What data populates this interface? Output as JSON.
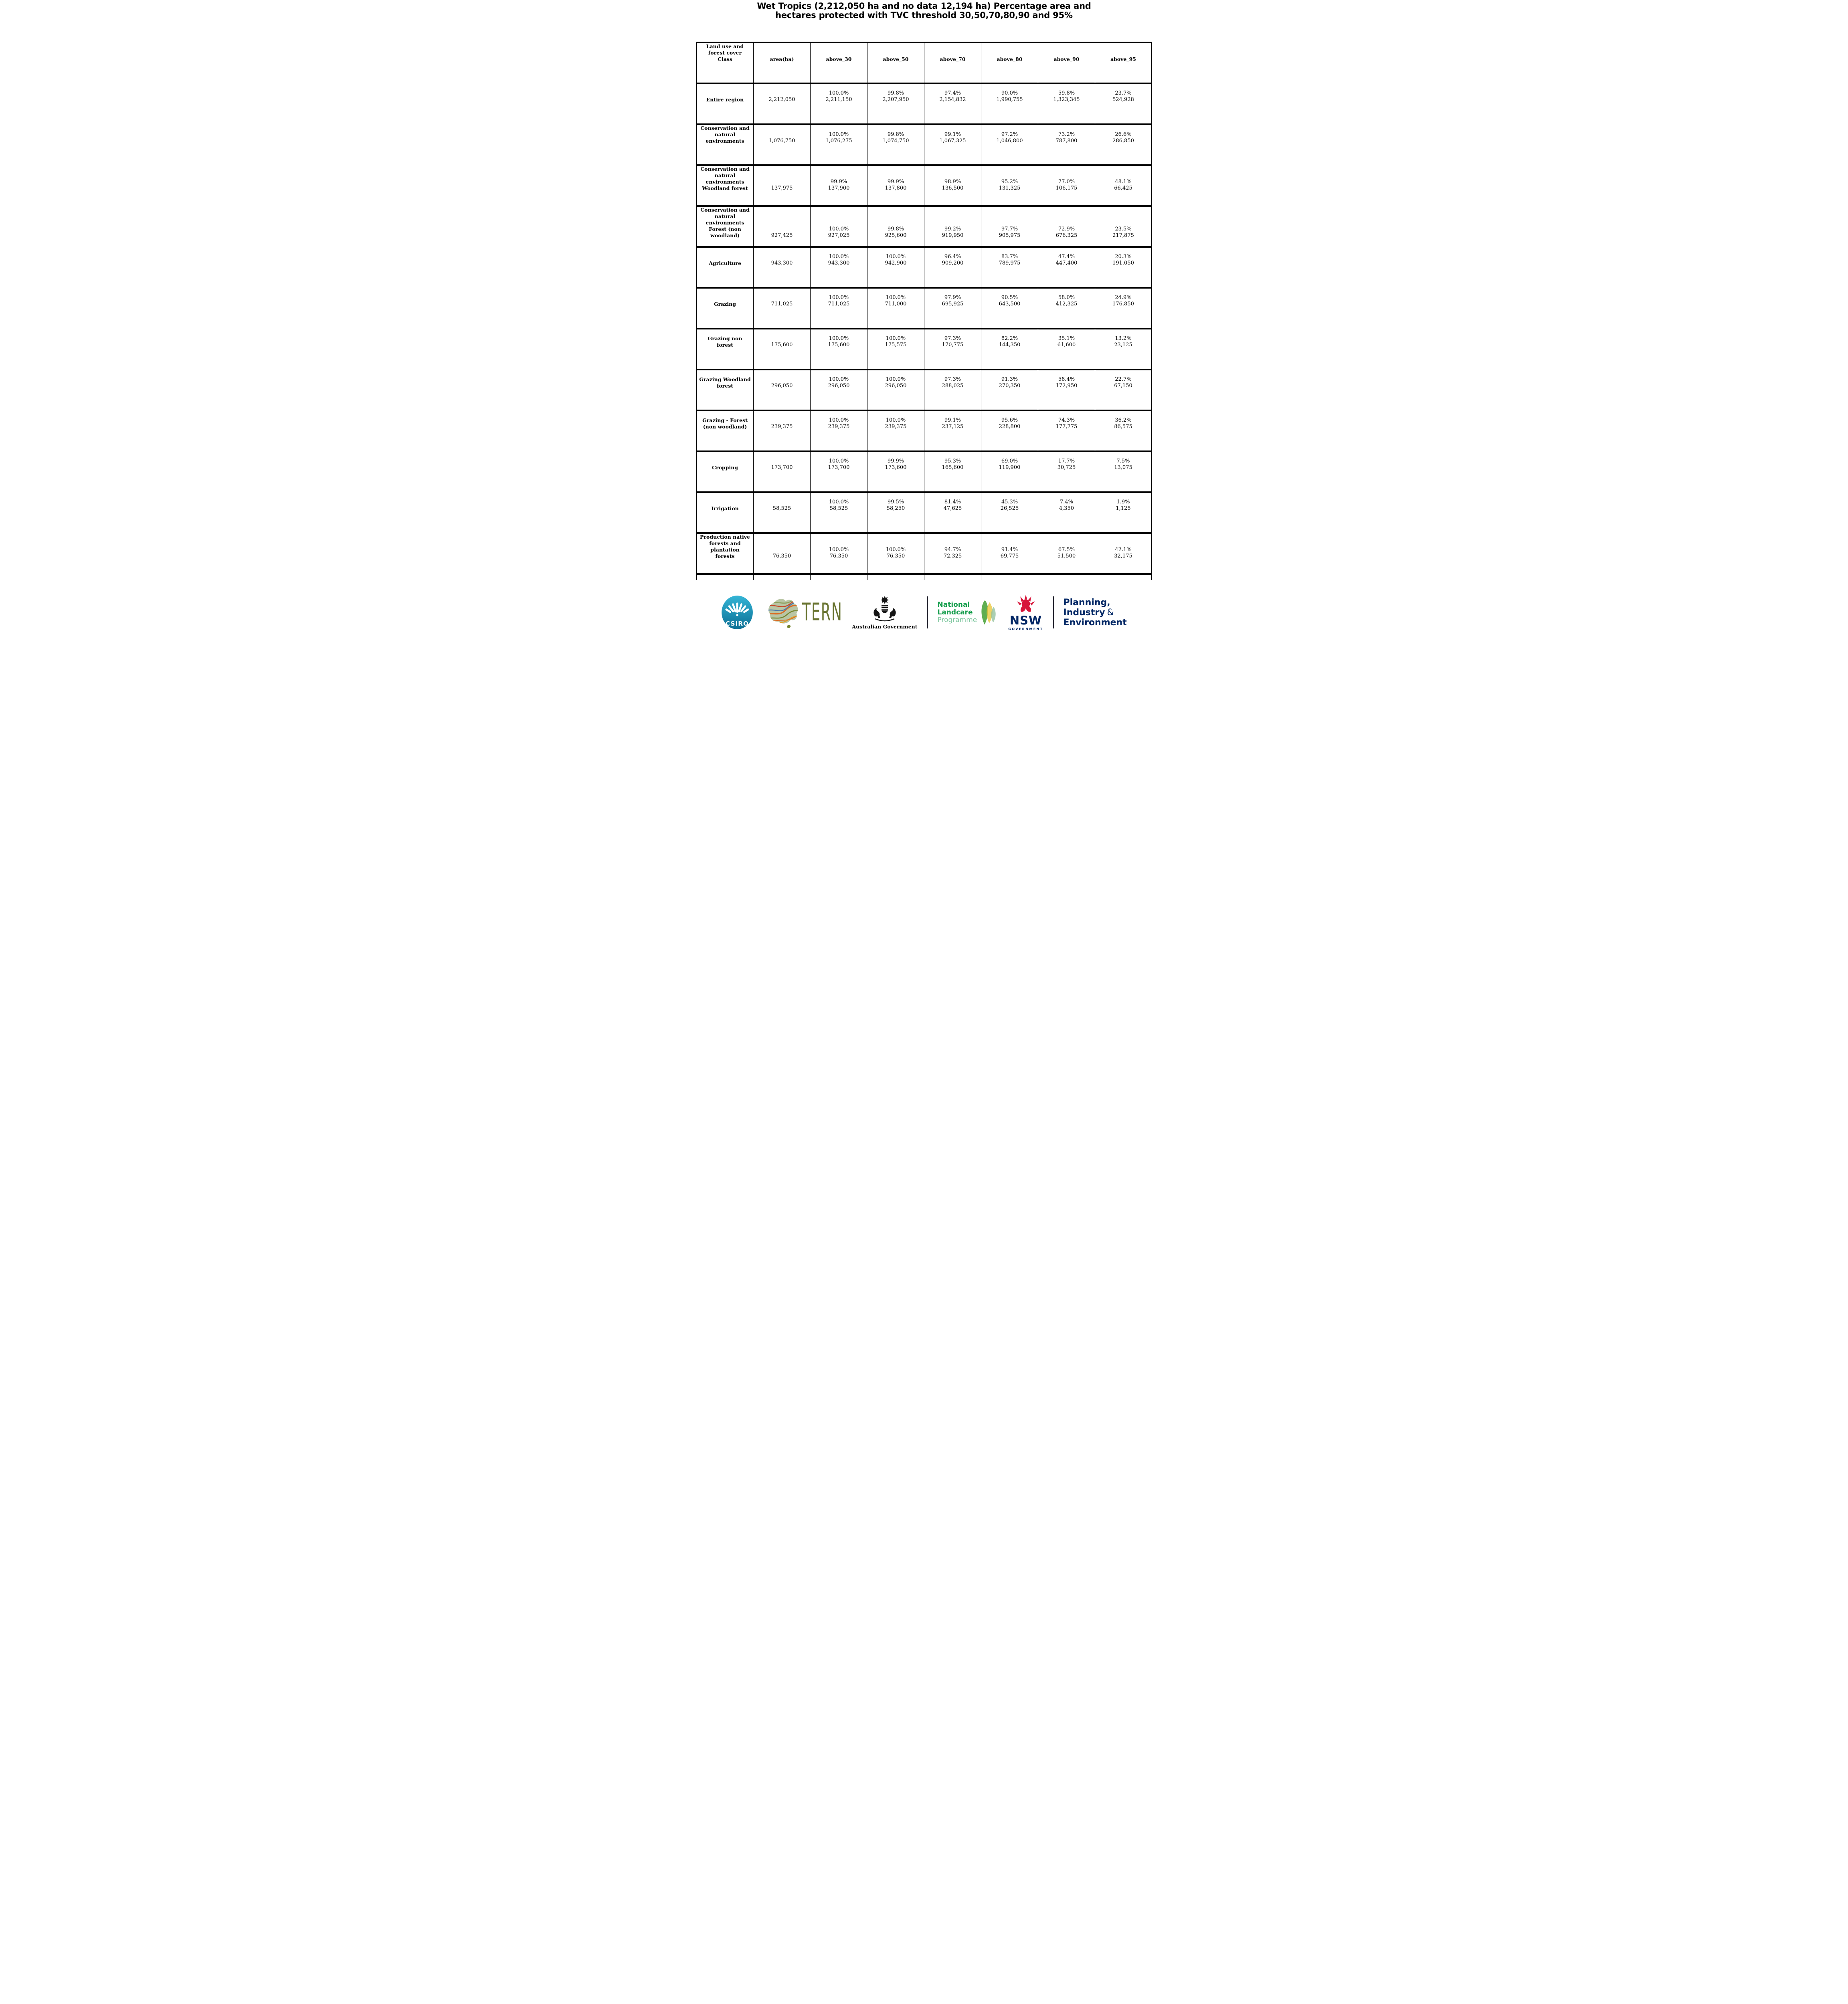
{
  "title": {
    "lines": [
      "Wet Tropics (2,212,050 ha and no data 12,194 ha) Percentage area and",
      "hectares protected with TVC threshold 30,50,70,80,90 and 95%"
    ]
  },
  "table": {
    "type": "table",
    "headers": [
      "Land use and\nforest cover\nClass",
      "area(ha)",
      "above_30",
      "above_50",
      "above_70",
      "above_80",
      "above_90",
      "above_95"
    ],
    "rows": [
      {
        "label": "Entire region",
        "area": "2,212,050",
        "cells": [
          [
            "100.0%",
            "2,211,150"
          ],
          [
            "99.8%",
            "2,207,950"
          ],
          [
            "97.4%",
            "2,154,832"
          ],
          [
            "90.0%",
            "1,990,755"
          ],
          [
            "59.8%",
            "1,323,345"
          ],
          [
            "23.7%",
            "524,928"
          ]
        ]
      },
      {
        "label": "Conservation and\nnatural\nenvironments",
        "area": "1,076,750",
        "cells": [
          [
            "100.0%",
            "1,076,275"
          ],
          [
            "99.8%",
            "1,074,750"
          ],
          [
            "99.1%",
            "1,067,325"
          ],
          [
            "97.2%",
            "1,046,800"
          ],
          [
            "73.2%",
            "787,800"
          ],
          [
            "26.6%",
            "286,850"
          ]
        ]
      },
      {
        "label": "Conservation and\nnatural\nenvironments\nWoodland forest",
        "area": "137,975",
        "cells": [
          [
            "99.9%",
            "137,900"
          ],
          [
            "99.9%",
            "137,800"
          ],
          [
            "98.9%",
            "136,500"
          ],
          [
            "95.2%",
            "131,325"
          ],
          [
            "77.0%",
            "106,175"
          ],
          [
            "48.1%",
            "66,425"
          ]
        ]
      },
      {
        "label": "Conservation and\nnatural\nenvironments\nForest (non\nwoodland)",
        "area": "927,425",
        "cells": [
          [
            "100.0%",
            "927,025"
          ],
          [
            "99.8%",
            "925,600"
          ],
          [
            "99.2%",
            "919,950"
          ],
          [
            "97.7%",
            "905,975"
          ],
          [
            "72.9%",
            "676,325"
          ],
          [
            "23.5%",
            "217,875"
          ]
        ]
      },
      {
        "label": "Agriculture",
        "area": "943,300",
        "cells": [
          [
            "100.0%",
            "943,300"
          ],
          [
            "100.0%",
            "942,900"
          ],
          [
            "96.4%",
            "909,200"
          ],
          [
            "83.7%",
            "789,975"
          ],
          [
            "47.4%",
            "447,400"
          ],
          [
            "20.3%",
            "191,050"
          ]
        ]
      },
      {
        "label": "Grazing",
        "area": "711,025",
        "cells": [
          [
            "100.0%",
            "711,025"
          ],
          [
            "100.0%",
            "711,000"
          ],
          [
            "97.9%",
            "695,925"
          ],
          [
            "90.5%",
            "643,500"
          ],
          [
            "58.0%",
            "412,325"
          ],
          [
            "24.9%",
            "176,850"
          ]
        ]
      },
      {
        "label": "Grazing non\nforest",
        "area": "175,600",
        "cells": [
          [
            "100.0%",
            "175,600"
          ],
          [
            "100.0%",
            "175,575"
          ],
          [
            "97.3%",
            "170,775"
          ],
          [
            "82.2%",
            "144,350"
          ],
          [
            "35.1%",
            "61,600"
          ],
          [
            "13.2%",
            "23,125"
          ]
        ]
      },
      {
        "label": "Grazing Woodland\nforest",
        "area": "296,050",
        "cells": [
          [
            "100.0%",
            "296,050"
          ],
          [
            "100.0%",
            "296,050"
          ],
          [
            "97.3%",
            "288,025"
          ],
          [
            "91.3%",
            "270,350"
          ],
          [
            "58.4%",
            "172,950"
          ],
          [
            "22.7%",
            "67,150"
          ]
        ]
      },
      {
        "label": "Grazing - Forest\n(non woodland)",
        "area": "239,375",
        "cells": [
          [
            "100.0%",
            "239,375"
          ],
          [
            "100.0%",
            "239,375"
          ],
          [
            "99.1%",
            "237,125"
          ],
          [
            "95.6%",
            "228,800"
          ],
          [
            "74.3%",
            "177,775"
          ],
          [
            "36.2%",
            "86,575"
          ]
        ]
      },
      {
        "label": "Cropping",
        "area": "173,700",
        "cells": [
          [
            "100.0%",
            "173,700"
          ],
          [
            "99.9%",
            "173,600"
          ],
          [
            "95.3%",
            "165,600"
          ],
          [
            "69.0%",
            "119,900"
          ],
          [
            "17.7%",
            "30,725"
          ],
          [
            "7.5%",
            "13,075"
          ]
        ]
      },
      {
        "label": "Irrigation",
        "area": "58,525",
        "cells": [
          [
            "100.0%",
            "58,525"
          ],
          [
            "99.5%",
            "58,250"
          ],
          [
            "81.4%",
            "47,625"
          ],
          [
            "45.3%",
            "26,525"
          ],
          [
            "7.4%",
            "4,350"
          ],
          [
            "1.9%",
            "1,125"
          ]
        ]
      },
      {
        "label": "Production native\nforests and\nplantation\nforests",
        "area": "76,350",
        "cells": [
          [
            "100.0%",
            "76,350"
          ],
          [
            "100.0%",
            "76,350"
          ],
          [
            "94.7%",
            "72,325"
          ],
          [
            "91.4%",
            "69,775"
          ],
          [
            "67.5%",
            "51,500"
          ],
          [
            "42.1%",
            "32,175"
          ]
        ]
      }
    ]
  },
  "footer": {
    "csiro": "CSIRO",
    "tern": "TERN",
    "aus_gov": "Australian Government",
    "landcare_line1": "National",
    "landcare_line2": "Landcare",
    "landcare_line3": "Programme",
    "nsw_acronym": "NSW",
    "nsw_sub": "GOVERNMENT",
    "planning_line1": "Planning,",
    "planning_line2a": "Industry",
    "planning_amp": "&",
    "planning_line3": "Environment",
    "colors": {
      "csiro_teal_top": "#35b5d6",
      "csiro_teal_bottom": "#0b6f94",
      "tern_olive": "#68732f",
      "landcare_green": "#169e4d",
      "landcare_light_green": "#7fc79f",
      "nsw_navy": "#002664",
      "waratah_red": "#d7153a",
      "text_black": "#000000"
    }
  }
}
